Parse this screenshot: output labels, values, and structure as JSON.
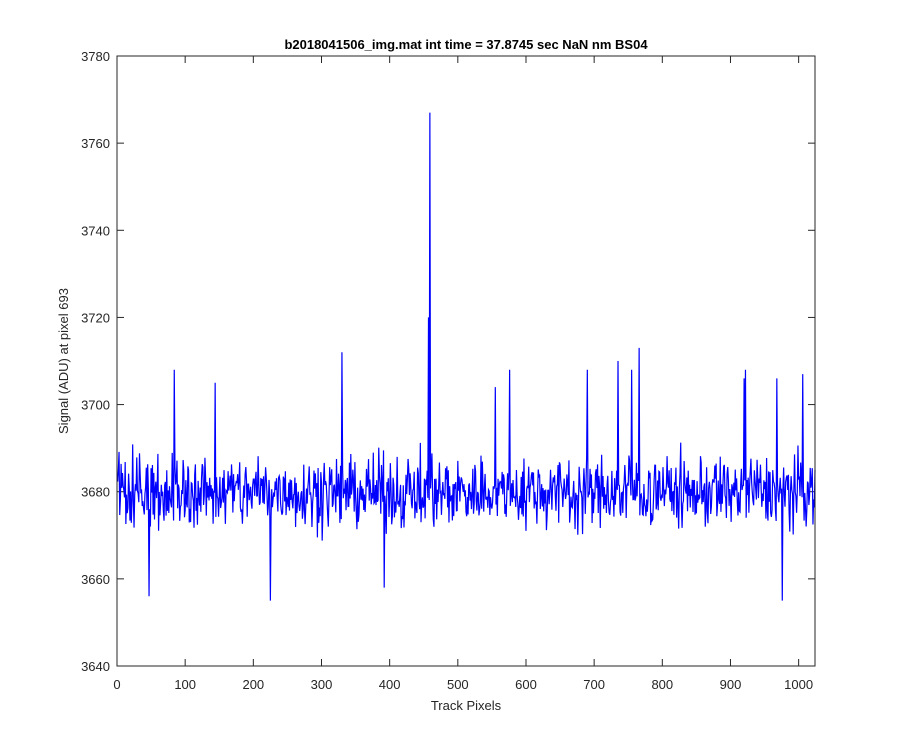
{
  "chart_data": {
    "type": "line",
    "title": "b2018041506_img.mat int time = 37.8745 sec  NaN nm BS04",
    "xlabel": "Track Pixels",
    "ylabel": "Signal (ADU) at pixel 693",
    "xlim": [
      0,
      1024
    ],
    "ylim": [
      3640,
      3780
    ],
    "xticks": [
      0,
      100,
      200,
      300,
      400,
      500,
      600,
      700,
      800,
      900,
      1000
    ],
    "yticks": [
      3640,
      3660,
      3680,
      3700,
      3720,
      3740,
      3760,
      3780
    ],
    "grid": false,
    "line_color": "#0000ff",
    "series": [
      {
        "x_start": 1,
        "x_step": 1,
        "n_points": 1024,
        "baseline": 3680,
        "noise_half_range": 10,
        "spikes": [
          {
            "x": 459,
            "y": 3767
          },
          {
            "x": 457,
            "y": 3720
          },
          {
            "x": 330,
            "y": 3712
          },
          {
            "x": 766,
            "y": 3713
          },
          {
            "x": 735,
            "y": 3710
          },
          {
            "x": 84,
            "y": 3708
          },
          {
            "x": 755,
            "y": 3708
          },
          {
            "x": 576,
            "y": 3708
          },
          {
            "x": 690,
            "y": 3708
          },
          {
            "x": 922,
            "y": 3708
          },
          {
            "x": 968,
            "y": 3706
          },
          {
            "x": 1006,
            "y": 3707
          },
          {
            "x": 920,
            "y": 3706
          },
          {
            "x": 144,
            "y": 3705
          },
          {
            "x": 555,
            "y": 3704
          },
          {
            "x": 225,
            "y": 3655
          },
          {
            "x": 976,
            "y": 3655
          },
          {
            "x": 392,
            "y": 3658
          },
          {
            "x": 47,
            "y": 3656
          }
        ]
      }
    ]
  }
}
